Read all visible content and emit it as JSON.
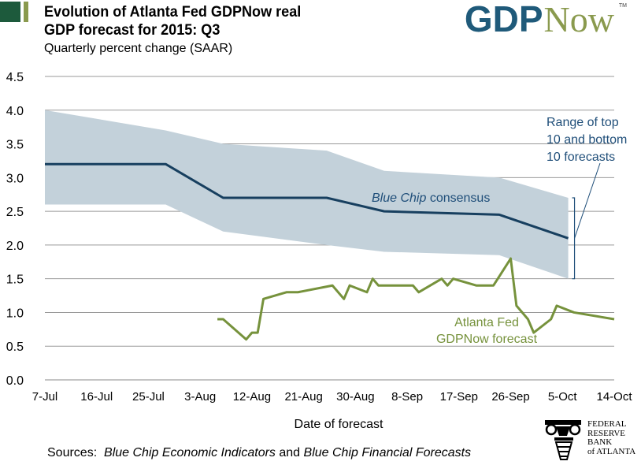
{
  "header": {
    "title_line1": "Evolution of Atlanta Fed GDPNow real",
    "title_line2": "GDP forecast for 2015: Q3",
    "subtitle": "Quarterly percent change (SAAR)",
    "logo_text": "GDPNow",
    "logo_parts": [
      "GDP",
      "Now"
    ],
    "logo_tm": "TM",
    "accent_colors": [
      "#1d5a3c",
      "#8a9a4e"
    ]
  },
  "footer": {
    "sources_label": "Sources:",
    "source1": "Blue Chip Economic Indicators",
    "and": "and",
    "source2": "Blue Chip Financial Forecasts",
    "frb_logo_lines": [
      "FEDERAL",
      "RESERVE",
      "BANK",
      "of ATLANTA"
    ]
  },
  "chart_data": {
    "type": "line",
    "title": "Evolution of Atlanta Fed GDPNow real GDP forecast for 2015: Q3",
    "ylabel": "Quarterly percent change (SAAR)",
    "xlabel": "Date of forecast",
    "ylim": [
      0,
      4.5
    ],
    "yticks": [
      "0.0",
      "0.5",
      "1.0",
      "1.5",
      "2.0",
      "2.5",
      "3.0",
      "3.5",
      "4.0",
      "4.5"
    ],
    "xlim": [
      "2015-07-07",
      "2015-10-14"
    ],
    "xticks": [
      "7-Jul",
      "16-Jul",
      "25-Jul",
      "3-Aug",
      "12-Aug",
      "21-Aug",
      "30-Aug",
      "8-Sep",
      "17-Sep",
      "26-Sep",
      "5-Oct",
      "14-Oct"
    ],
    "grid": "horizontal",
    "colors": {
      "consensus": "#173f5f",
      "gdpnow": "#76923c",
      "band": "#c3d1da",
      "annotation": "#1f4e79"
    },
    "band": {
      "name": "Range of top 10 and bottom 10 forecasts",
      "label_lines": [
        "Range of top",
        "10 and bottom",
        "10 forecasts"
      ],
      "x": [
        "2015-07-07",
        "2015-07-28",
        "2015-08-07",
        "2015-08-25",
        "2015-09-04",
        "2015-09-24",
        "2015-10-06"
      ],
      "upper": [
        4.0,
        3.7,
        3.5,
        3.4,
        3.1,
        3.0,
        2.7
      ],
      "lower": [
        2.6,
        2.6,
        2.2,
        2.0,
        1.9,
        1.85,
        1.5
      ]
    },
    "series": [
      {
        "name": "Blue Chip consensus",
        "label_italic": "Blue Chip",
        "label_rest": "consensus",
        "x": [
          "2015-07-07",
          "2015-07-28",
          "2015-08-07",
          "2015-08-25",
          "2015-09-04",
          "2015-09-24",
          "2015-10-06"
        ],
        "values": [
          3.2,
          3.2,
          2.7,
          2.7,
          2.5,
          2.45,
          2.1
        ]
      },
      {
        "name": "Atlanta Fed GDPNow forecast",
        "label_lines": [
          "Atlanta Fed",
          "GDPNow forecast"
        ],
        "x": [
          "2015-08-06",
          "2015-08-07",
          "2015-08-11",
          "2015-08-12",
          "2015-08-13",
          "2015-08-14",
          "2015-08-18",
          "2015-08-20",
          "2015-08-26",
          "2015-08-28",
          "2015-08-29",
          "2015-09-01",
          "2015-09-02",
          "2015-09-03",
          "2015-09-09",
          "2015-09-10",
          "2015-09-14",
          "2015-09-15",
          "2015-09-16",
          "2015-09-20",
          "2015-09-23",
          "2015-09-26",
          "2015-09-27",
          "2015-09-29",
          "2015-09-30",
          "2015-10-03",
          "2015-10-04",
          "2015-10-07",
          "2015-10-14"
        ],
        "values": [
          0.9,
          0.9,
          0.6,
          0.7,
          0.7,
          1.2,
          1.3,
          1.3,
          1.4,
          1.2,
          1.4,
          1.3,
          1.5,
          1.4,
          1.4,
          1.3,
          1.5,
          1.4,
          1.5,
          1.4,
          1.4,
          1.8,
          1.1,
          0.9,
          0.7,
          0.9,
          1.1,
          1.0,
          0.9
        ]
      }
    ]
  }
}
